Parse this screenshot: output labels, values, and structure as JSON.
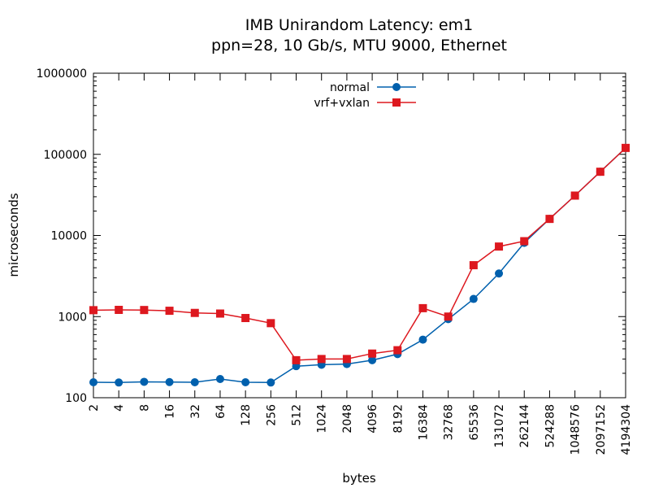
{
  "chart_data": {
    "type": "line",
    "title": "IMB Unirandom Latency: em1",
    "subtitle": "ppn=28, 10 Gb/s, MTU 9000, Ethernet",
    "xlabel": "bytes",
    "ylabel": "microseconds",
    "x_scale": "log2",
    "y_scale": "log10",
    "xlim": [
      2,
      4194304
    ],
    "ylim": [
      100,
      1000000
    ],
    "y_ticks": [
      "100",
      "1000",
      "10000",
      "100000",
      "1000000"
    ],
    "x": [
      2,
      4,
      8,
      16,
      32,
      64,
      128,
      256,
      512,
      1024,
      2048,
      4096,
      8192,
      16384,
      32768,
      65536,
      131072,
      262144,
      524288,
      1048576,
      2097152,
      4194304
    ],
    "x_tick_labels": [
      "2",
      "4",
      "8",
      "16",
      "32",
      "64",
      "128",
      "256",
      "512",
      "1024",
      "2048",
      "4096",
      "8192",
      "16384",
      "32768",
      "65536",
      "131072",
      "262144",
      "524288",
      "1048576",
      "2097152",
      "4194304"
    ],
    "legend_position": "top-center",
    "grid": false,
    "series": [
      {
        "name": "normal",
        "color": "#0060ad",
        "marker": "circle",
        "values": [
          155,
          154,
          157,
          156,
          155,
          170,
          155,
          154,
          245,
          255,
          260,
          290,
          345,
          520,
          930,
          1650,
          3400,
          8100,
          16000,
          31000,
          61000,
          120000
        ]
      },
      {
        "name": "vrf+vxlan",
        "color": "#dd181f",
        "marker": "square",
        "values": [
          1200,
          1210,
          1205,
          1180,
          1110,
          1090,
          960,
          830,
          290,
          300,
          300,
          350,
          385,
          1270,
          1000,
          4300,
          7300,
          8500,
          16000,
          31000,
          61000,
          120000
        ]
      }
    ]
  }
}
